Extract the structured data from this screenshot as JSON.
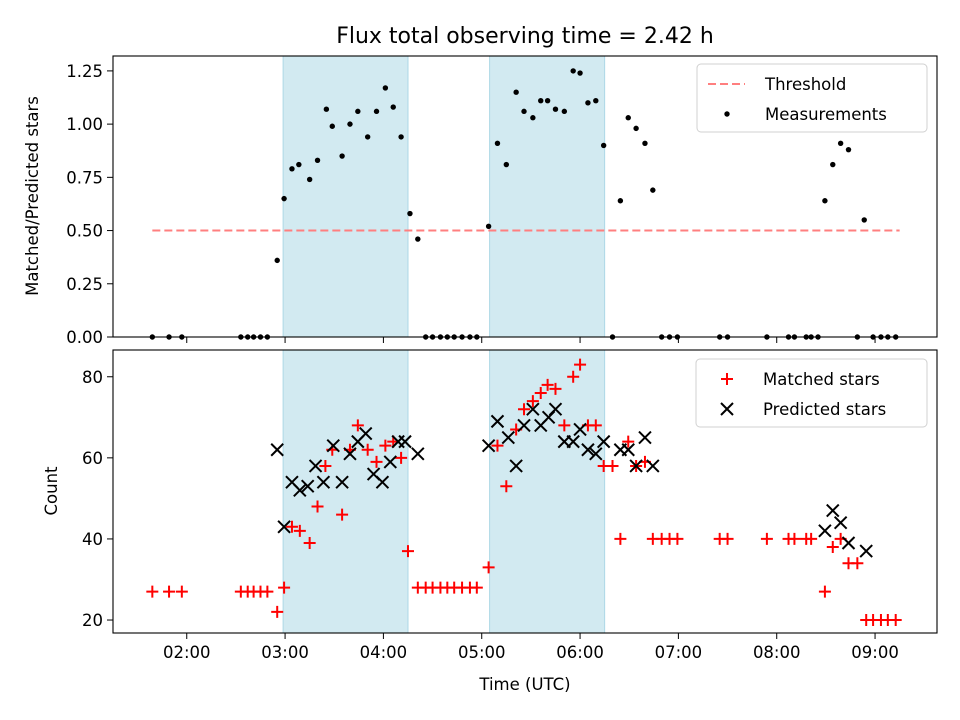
{
  "chart_data": {
    "type": "scatter",
    "title": "Flux total observing time = 2.42 h",
    "xlabel": "Time (UTC)",
    "x_units": "hours UTC",
    "xlim": [
      1.25,
      9.63
    ],
    "x_ticks": [
      {
        "value": 2,
        "label": "02:00"
      },
      {
        "value": 3,
        "label": "03:00"
      },
      {
        "value": 4,
        "label": "04:00"
      },
      {
        "value": 5,
        "label": "05:00"
      },
      {
        "value": 6,
        "label": "06:00"
      },
      {
        "value": 7,
        "label": "07:00"
      },
      {
        "value": 8,
        "label": "08:00"
      },
      {
        "value": 9,
        "label": "09:00"
      }
    ],
    "highlight_spans": [
      [
        2.98,
        4.25
      ],
      [
        5.08,
        6.25
      ]
    ],
    "highlight_color": "#add8e6",
    "panels": [
      {
        "id": "ratio",
        "ylabel": "Matched/Predicted stars",
        "ylim": [
          0,
          1.32
        ],
        "y_ticks": [
          "0.00",
          "0.25",
          "0.50",
          "0.75",
          "1.00",
          "1.25"
        ],
        "threshold": {
          "name": "Threshold",
          "value": 0.5,
          "x_range": [
            1.65,
            9.25
          ],
          "color": "#ff7f7f"
        },
        "series": [
          {
            "name": "Measurements",
            "marker": "dot",
            "color": "#000000",
            "points": [
              [
                1.65,
                0
              ],
              [
                1.82,
                0
              ],
              [
                1.95,
                0
              ],
              [
                2.55,
                0
              ],
              [
                2.62,
                0
              ],
              [
                2.68,
                0
              ],
              [
                2.75,
                0
              ],
              [
                2.82,
                0
              ],
              [
                2.92,
                0.36
              ],
              [
                2.99,
                0.65
              ],
              [
                3.07,
                0.79
              ],
              [
                3.14,
                0.81
              ],
              [
                3.25,
                0.74
              ],
              [
                3.33,
                0.83
              ],
              [
                3.42,
                1.07
              ],
              [
                3.48,
                0.99
              ],
              [
                3.58,
                0.85
              ],
              [
                3.66,
                1.0
              ],
              [
                3.74,
                1.06
              ],
              [
                3.84,
                0.94
              ],
              [
                3.93,
                1.06
              ],
              [
                4.02,
                1.17
              ],
              [
                4.1,
                1.08
              ],
              [
                4.18,
                0.94
              ],
              [
                4.27,
                0.58
              ],
              [
                4.35,
                0.46
              ],
              [
                4.43,
                0
              ],
              [
                4.5,
                0
              ],
              [
                4.58,
                0
              ],
              [
                4.65,
                0
              ],
              [
                4.72,
                0
              ],
              [
                4.8,
                0
              ],
              [
                4.88,
                0
              ],
              [
                4.95,
                0
              ],
              [
                5.07,
                0.52
              ],
              [
                5.16,
                0.91
              ],
              [
                5.25,
                0.81
              ],
              [
                5.35,
                1.15
              ],
              [
                5.43,
                1.06
              ],
              [
                5.52,
                1.03
              ],
              [
                5.6,
                1.11
              ],
              [
                5.67,
                1.11
              ],
              [
                5.75,
                1.07
              ],
              [
                5.84,
                1.06
              ],
              [
                5.93,
                1.25
              ],
              [
                6.0,
                1.24
              ],
              [
                6.08,
                1.1
              ],
              [
                6.16,
                1.11
              ],
              [
                6.24,
                0.9
              ],
              [
                6.33,
                0
              ],
              [
                6.41,
                0.64
              ],
              [
                6.49,
                1.03
              ],
              [
                6.57,
                0.98
              ],
              [
                6.66,
                0.91
              ],
              [
                6.74,
                0.69
              ],
              [
                6.83,
                0
              ],
              [
                6.91,
                0
              ],
              [
                6.99,
                0
              ],
              [
                7.42,
                0
              ],
              [
                7.5,
                0
              ],
              [
                7.9,
                0
              ],
              [
                8.12,
                0
              ],
              [
                8.18,
                0
              ],
              [
                8.3,
                0
              ],
              [
                8.35,
                0
              ],
              [
                8.42,
                0
              ],
              [
                8.49,
                0.64
              ],
              [
                8.57,
                0.81
              ],
              [
                8.65,
                0.91
              ],
              [
                8.73,
                0.88
              ],
              [
                8.82,
                0
              ],
              [
                8.89,
                0.55
              ],
              [
                8.98,
                0
              ],
              [
                9.06,
                0
              ],
              [
                9.13,
                0
              ],
              [
                9.21,
                0
              ]
            ]
          }
        ]
      },
      {
        "id": "counts",
        "ylabel": "Count",
        "ylim": [
          16.8,
          86.6
        ],
        "y_ticks": [
          "20",
          "40",
          "60",
          "80"
        ],
        "series": [
          {
            "name": "Matched stars",
            "marker": "plus",
            "color": "#ff0000",
            "points": [
              [
                1.65,
                27
              ],
              [
                1.82,
                27
              ],
              [
                1.95,
                27
              ],
              [
                2.55,
                27
              ],
              [
                2.62,
                27
              ],
              [
                2.68,
                27
              ],
              [
                2.75,
                27
              ],
              [
                2.82,
                27
              ],
              [
                2.92,
                22
              ],
              [
                2.99,
                28
              ],
              [
                3.07,
                43
              ],
              [
                3.15,
                42
              ],
              [
                3.25,
                39
              ],
              [
                3.33,
                48
              ],
              [
                3.41,
                58
              ],
              [
                3.48,
                62
              ],
              [
                3.58,
                46
              ],
              [
                3.66,
                62
              ],
              [
                3.74,
                68
              ],
              [
                3.84,
                62
              ],
              [
                3.93,
                59
              ],
              [
                4.02,
                63
              ],
              [
                4.1,
                64
              ],
              [
                4.18,
                60
              ],
              [
                4.25,
                37
              ],
              [
                4.35,
                28
              ],
              [
                4.43,
                28
              ],
              [
                4.5,
                28
              ],
              [
                4.58,
                28
              ],
              [
                4.65,
                28
              ],
              [
                4.72,
                28
              ],
              [
                4.8,
                28
              ],
              [
                4.88,
                28
              ],
              [
                4.95,
                28
              ],
              [
                5.07,
                33
              ],
              [
                5.16,
                63
              ],
              [
                5.25,
                53
              ],
              [
                5.35,
                67
              ],
              [
                5.43,
                72
              ],
              [
                5.52,
                74
              ],
              [
                5.6,
                76
              ],
              [
                5.67,
                78
              ],
              [
                5.75,
                77
              ],
              [
                5.84,
                68
              ],
              [
                5.93,
                80
              ],
              [
                6.0,
                83
              ],
              [
                6.08,
                68
              ],
              [
                6.16,
                68
              ],
              [
                6.24,
                58
              ],
              [
                6.33,
                58
              ],
              [
                6.41,
                40
              ],
              [
                6.49,
                64
              ],
              [
                6.57,
                58
              ],
              [
                6.66,
                59
              ],
              [
                6.74,
                40
              ],
              [
                6.83,
                40
              ],
              [
                6.91,
                40
              ],
              [
                6.99,
                40
              ],
              [
                7.42,
                40
              ],
              [
                7.5,
                40
              ],
              [
                7.9,
                40
              ],
              [
                8.12,
                40
              ],
              [
                8.18,
                40
              ],
              [
                8.3,
                40
              ],
              [
                8.35,
                40
              ],
              [
                8.49,
                27
              ],
              [
                8.57,
                38
              ],
              [
                8.65,
                40
              ],
              [
                8.73,
                34
              ],
              [
                8.82,
                34
              ],
              [
                8.91,
                20
              ],
              [
                8.98,
                20
              ],
              [
                9.06,
                20
              ],
              [
                9.13,
                20
              ],
              [
                9.21,
                20
              ]
            ]
          },
          {
            "name": "Predicted stars",
            "marker": "x",
            "color": "#000000",
            "points": [
              [
                2.92,
                62
              ],
              [
                2.99,
                43
              ],
              [
                3.07,
                54
              ],
              [
                3.15,
                52
              ],
              [
                3.23,
                53
              ],
              [
                3.31,
                58
              ],
              [
                3.39,
                54
              ],
              [
                3.49,
                63
              ],
              [
                3.58,
                54
              ],
              [
                3.66,
                61
              ],
              [
                3.74,
                64
              ],
              [
                3.82,
                66
              ],
              [
                3.9,
                56
              ],
              [
                3.99,
                54
              ],
              [
                4.07,
                59
              ],
              [
                4.15,
                64
              ],
              [
                4.22,
                64
              ],
              [
                4.35,
                61
              ],
              [
                5.07,
                63
              ],
              [
                5.16,
                69
              ],
              [
                5.27,
                65
              ],
              [
                5.35,
                58
              ],
              [
                5.43,
                68
              ],
              [
                5.52,
                72
              ],
              [
                5.6,
                68
              ],
              [
                5.68,
                70
              ],
              [
                5.75,
                72
              ],
              [
                5.84,
                64
              ],
              [
                5.93,
                64
              ],
              [
                6.0,
                67
              ],
              [
                6.08,
                62
              ],
              [
                6.16,
                61
              ],
              [
                6.24,
                64
              ],
              [
                6.41,
                62
              ],
              [
                6.49,
                62
              ],
              [
                6.57,
                58
              ],
              [
                6.66,
                65
              ],
              [
                6.74,
                58
              ],
              [
                8.49,
                42
              ],
              [
                8.57,
                47
              ],
              [
                8.65,
                44
              ],
              [
                8.73,
                39
              ],
              [
                8.91,
                37
              ]
            ]
          }
        ]
      }
    ]
  }
}
